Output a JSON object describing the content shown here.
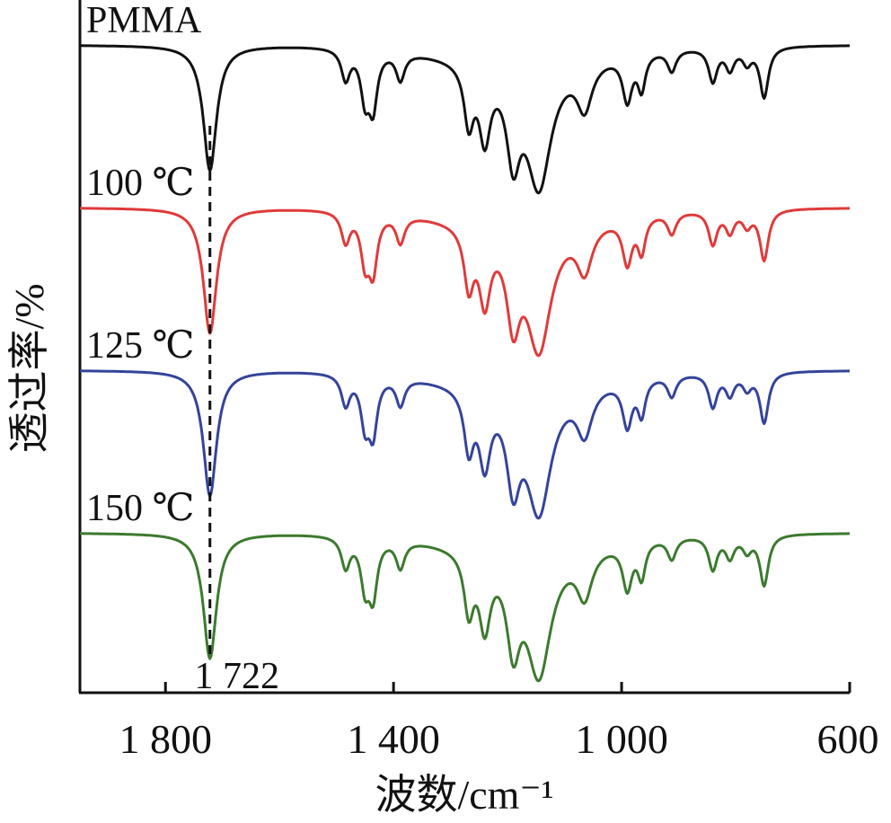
{
  "chart_data": {
    "type": "line",
    "xlabel": "波数/cm⁻¹",
    "ylabel": "透过率/%",
    "xlim": [
      1950,
      600
    ],
    "x_reversed": true,
    "x_ticks": [
      1800,
      1400,
      1000,
      600
    ],
    "x_tick_labels": [
      "1 800",
      "1 400",
      "1 000",
      "600"
    ],
    "y_ticks_shown": false,
    "grid": false,
    "legend": "none",
    "stacked_offset": true,
    "annotation": {
      "label": "1 722",
      "x": 1722,
      "style": "dashed vertical line"
    },
    "peak_template": {
      "baseline_transmittance": 1.0,
      "features_wavenumber_depth": [
        [
          1722,
          0.82
        ],
        [
          1484,
          0.2
        ],
        [
          1450,
          0.3
        ],
        [
          1436,
          0.36
        ],
        [
          1388,
          0.18
        ],
        [
          1268,
          0.38
        ],
        [
          1240,
          0.46
        ],
        [
          1190,
          0.54
        ],
        [
          1145,
          0.8
        ],
        [
          1065,
          0.3
        ],
        [
          990,
          0.3
        ],
        [
          965,
          0.23
        ],
        [
          912,
          0.14
        ],
        [
          840,
          0.22
        ],
        [
          810,
          0.14
        ],
        [
          780,
          0.1
        ],
        [
          750,
          0.33
        ]
      ]
    },
    "series": [
      {
        "name": "PMMA",
        "color": "#111111"
      },
      {
        "name": "100 ℃",
        "color": "#e03a3a"
      },
      {
        "name": "125 ℃",
        "color": "#34449a"
      },
      {
        "name": "150 ℃",
        "color": "#3c7a2e"
      }
    ]
  }
}
